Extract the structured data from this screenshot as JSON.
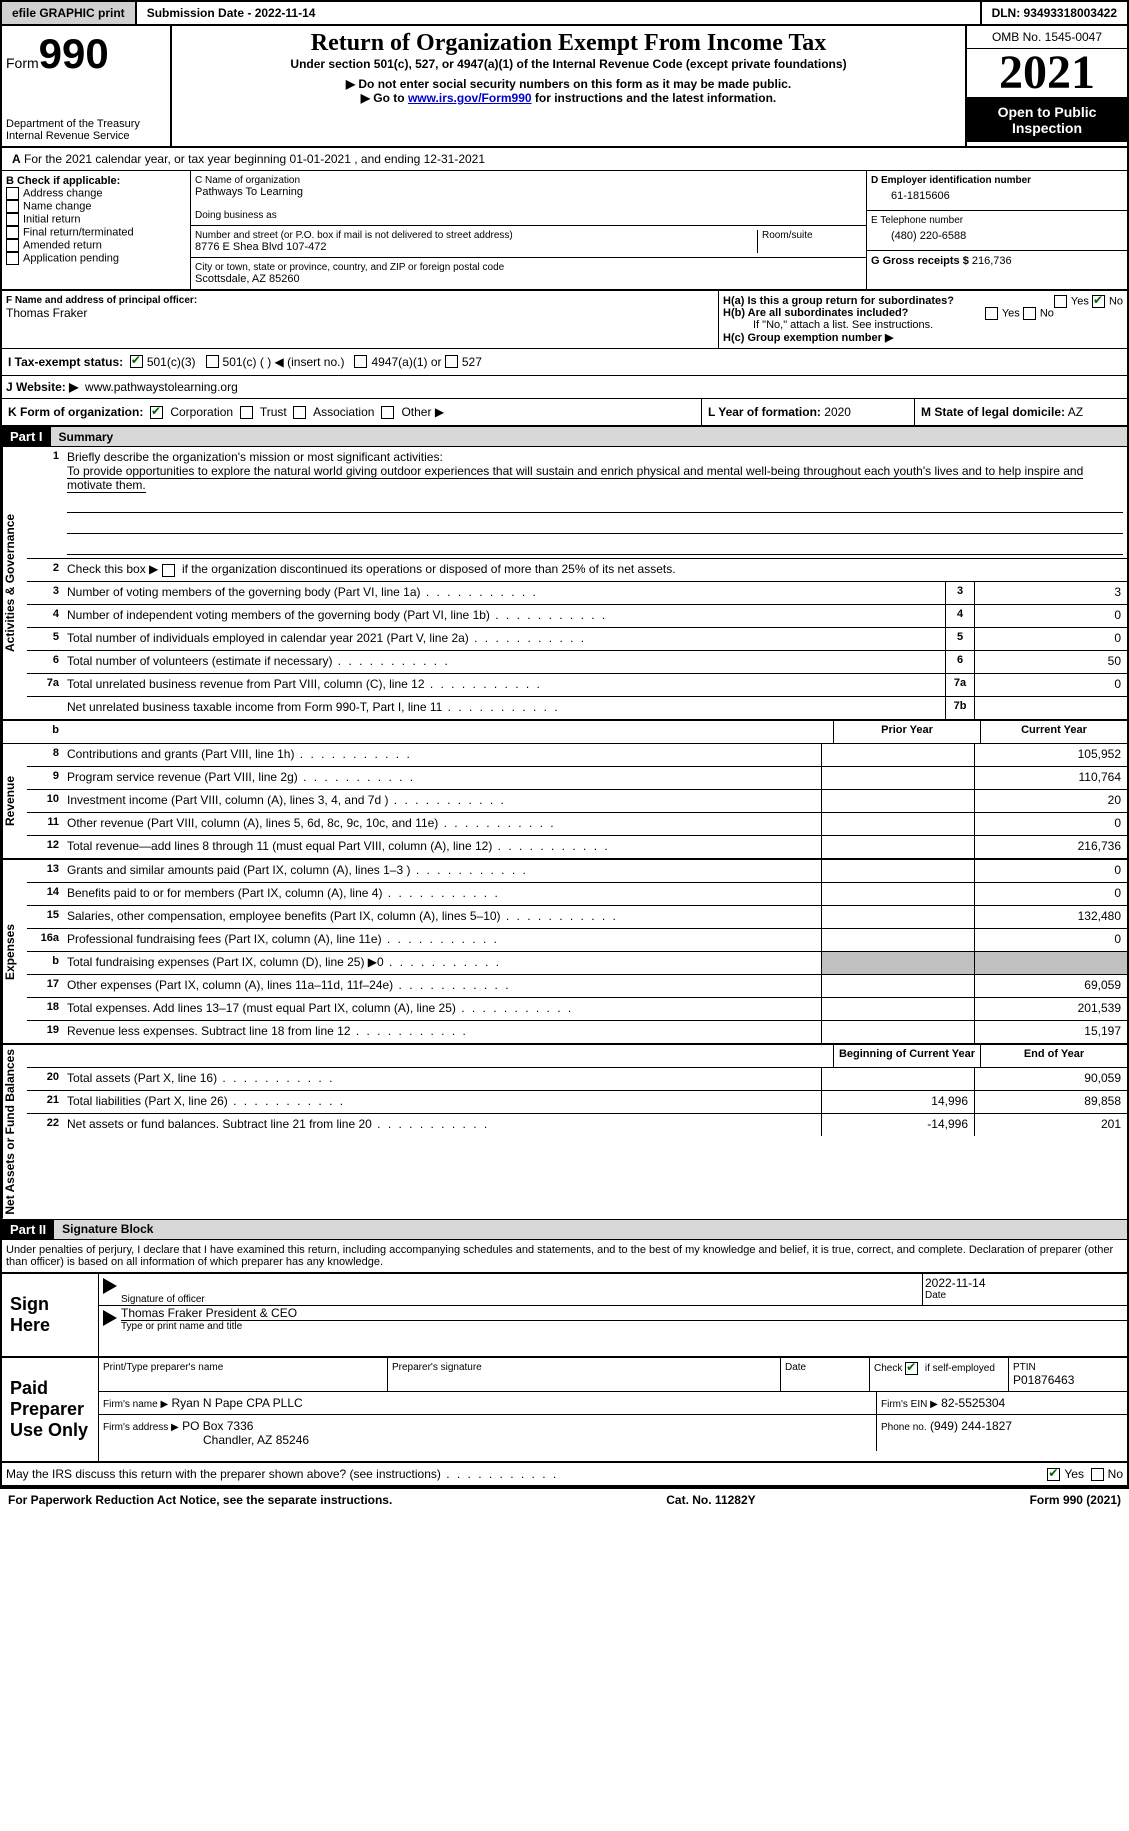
{
  "topbar": {
    "efile": "efile GRAPHIC print",
    "submission": "Submission Date - 2022-11-14",
    "dln": "DLN: 93493318003422"
  },
  "header": {
    "form_label": "Form",
    "form_number": "990",
    "dept": "Department of the Treasury",
    "irs": "Internal Revenue Service",
    "title": "Return of Organization Exempt From Income Tax",
    "subtitle": "Under section 501(c), 527, or 4947(a)(1) of the Internal Revenue Code (except private foundations)",
    "instr1": "▶ Do not enter social security numbers on this form as it may be made public.",
    "instr2_pre": "▶ Go to ",
    "instr2_link": "www.irs.gov/Form990",
    "instr2_post": " for instructions and the latest information.",
    "omb": "OMB No. 1545-0047",
    "year": "2021",
    "inspection": "Open to Public Inspection"
  },
  "sectionA": "For the 2021 calendar year, or tax year beginning 01-01-2021   , and ending 12-31-2021",
  "boxB": {
    "label": "B Check if applicable:",
    "items": [
      "Address change",
      "Name change",
      "Initial return",
      "Final return/terminated",
      "Amended return",
      "Application pending"
    ]
  },
  "boxC": {
    "name_label": "C Name of organization",
    "name": "Pathways To Learning",
    "dba_label": "Doing business as",
    "addr_label": "Number and street (or P.O. box if mail is not delivered to street address)",
    "room_label": "Room/suite",
    "addr": "8776 E Shea Blvd 107-472",
    "city_label": "City or town, state or province, country, and ZIP or foreign postal code",
    "city": "Scottsdale, AZ  85260"
  },
  "boxD": {
    "ein_label": "D Employer identification number",
    "ein": "61-1815606",
    "phone_label": "E Telephone number",
    "phone": "(480) 220-6588",
    "gross_label": "G Gross receipts $",
    "gross": "216,736"
  },
  "boxF": {
    "label": "F  Name and address of principal officer:",
    "name": "Thomas Fraker"
  },
  "boxH": {
    "ha": "H(a)  Is this a group return for subordinates?",
    "hb": "H(b)  Are all subordinates included?",
    "hb_note": "If \"No,\" attach a list. See instructions.",
    "hc": "H(c)  Group exemption number ▶",
    "yes": "Yes",
    "no": "No"
  },
  "boxI": {
    "label": "I    Tax-exempt status:",
    "opts": [
      "501(c)(3)",
      "501(c) (  ) ◀ (insert no.)",
      "4947(a)(1) or",
      "527"
    ]
  },
  "boxJ": {
    "label": "J   Website: ▶",
    "val": "www.pathwaystolearning.org"
  },
  "boxK": {
    "label": "K Form of organization:",
    "opts": [
      "Corporation",
      "Trust",
      "Association",
      "Other ▶"
    ]
  },
  "boxL": {
    "label": "L Year of formation:",
    "val": "2020"
  },
  "boxM": {
    "label": "M State of legal domicile:",
    "val": "AZ"
  },
  "part1": {
    "label": "Part I",
    "title": "Summary"
  },
  "summary": {
    "q1": "Briefly describe the organization's mission or most significant activities:",
    "mission": "To provide opportunities to explore the natural world giving outdoor experiences that will sustain and enrich physical and mental well-being throughout each youth's lives and to help inspire and motivate them.",
    "q2": "Check this box ▶       if the organization discontinued its operations or disposed of more than 25% of its net assets.",
    "rows_gov": [
      {
        "n": "3",
        "d": "Number of voting members of the governing body (Part VI, line 1a)",
        "box": "3",
        "v": "3"
      },
      {
        "n": "4",
        "d": "Number of independent voting members of the governing body (Part VI, line 1b)",
        "box": "4",
        "v": "0"
      },
      {
        "n": "5",
        "d": "Total number of individuals employed in calendar year 2021 (Part V, line 2a)",
        "box": "5",
        "v": "0"
      },
      {
        "n": "6",
        "d": "Total number of volunteers (estimate if necessary)",
        "box": "6",
        "v": "50"
      },
      {
        "n": "7a",
        "d": "Total unrelated business revenue from Part VIII, column (C), line 12",
        "box": "7a",
        "v": "0"
      },
      {
        "n": "",
        "d": "Net unrelated business taxable income from Form 990-T, Part I, line 11",
        "box": "7b",
        "v": ""
      }
    ],
    "hdr_prior": "Prior Year",
    "hdr_current": "Current Year",
    "rows_rev": [
      {
        "n": "8",
        "d": "Contributions and grants (Part VIII, line 1h)",
        "p": "",
        "c": "105,952"
      },
      {
        "n": "9",
        "d": "Program service revenue (Part VIII, line 2g)",
        "p": "",
        "c": "110,764"
      },
      {
        "n": "10",
        "d": "Investment income (Part VIII, column (A), lines 3, 4, and 7d )",
        "p": "",
        "c": "20"
      },
      {
        "n": "11",
        "d": "Other revenue (Part VIII, column (A), lines 5, 6d, 8c, 9c, 10c, and 11e)",
        "p": "",
        "c": "0"
      },
      {
        "n": "12",
        "d": "Total revenue—add lines 8 through 11 (must equal Part VIII, column (A), line 12)",
        "p": "",
        "c": "216,736"
      }
    ],
    "rows_exp": [
      {
        "n": "13",
        "d": "Grants and similar amounts paid (Part IX, column (A), lines 1–3 )",
        "p": "",
        "c": "0"
      },
      {
        "n": "14",
        "d": "Benefits paid to or for members (Part IX, column (A), line 4)",
        "p": "",
        "c": "0"
      },
      {
        "n": "15",
        "d": "Salaries, other compensation, employee benefits (Part IX, column (A), lines 5–10)",
        "p": "",
        "c": "132,480"
      },
      {
        "n": "16a",
        "d": "Professional fundraising fees (Part IX, column (A), line 11e)",
        "p": "",
        "c": "0"
      },
      {
        "n": "b",
        "d": "Total fundraising expenses (Part IX, column (D), line 25) ▶0",
        "p": "shade",
        "c": "shade"
      },
      {
        "n": "17",
        "d": "Other expenses (Part IX, column (A), lines 11a–11d, 11f–24e)",
        "p": "",
        "c": "69,059"
      },
      {
        "n": "18",
        "d": "Total expenses. Add lines 13–17 (must equal Part IX, column (A), line 25)",
        "p": "",
        "c": "201,539"
      },
      {
        "n": "19",
        "d": "Revenue less expenses. Subtract line 18 from line 12",
        "p": "",
        "c": "15,197"
      }
    ],
    "hdr_begin": "Beginning of Current Year",
    "hdr_end": "End of Year",
    "rows_net": [
      {
        "n": "20",
        "d": "Total assets (Part X, line 16)",
        "p": "",
        "c": "90,059"
      },
      {
        "n": "21",
        "d": "Total liabilities (Part X, line 26)",
        "p": "14,996",
        "c": "89,858"
      },
      {
        "n": "22",
        "d": "Net assets or fund balances. Subtract line 21 from line 20",
        "p": "-14,996",
        "c": "201"
      }
    ]
  },
  "part2": {
    "label": "Part II",
    "title": "Signature Block"
  },
  "penalties": "Under penalties of perjury, I declare that I have examined this return, including accompanying schedules and statements, and to the best of my knowledge and belief, it is true, correct, and complete. Declaration of preparer (other than officer) is based on all information of which preparer has any knowledge.",
  "sign": {
    "here": "Sign Here",
    "sig_label": "Signature of officer",
    "date_label": "Date",
    "date": "2022-11-14",
    "name": "Thomas Fraker  President & CEO",
    "name_label": "Type or print name and title"
  },
  "preparer": {
    "label": "Paid Preparer Use Only",
    "print_label": "Print/Type preparer's name",
    "sig_label": "Preparer's signature",
    "date_label": "Date",
    "check_label": "Check        if self-employed",
    "ptin_label": "PTIN",
    "ptin": "P01876463",
    "firm_name_label": "Firm's name    ▶",
    "firm_name": "Ryan N Pape CPA PLLC",
    "firm_ein_label": "Firm's EIN ▶",
    "firm_ein": "82-5525304",
    "firm_addr_label": "Firm's address ▶",
    "firm_addr1": "PO Box 7336",
    "firm_addr2": "Chandler, AZ  85246",
    "phone_label": "Phone no.",
    "phone": "(949) 244-1827"
  },
  "discuss": "May the IRS discuss this return with the preparer shown above? (see instructions)",
  "footer": {
    "left": "For Paperwork Reduction Act Notice, see the separate instructions.",
    "mid": "Cat. No. 11282Y",
    "right": "Form 990 (2021)"
  },
  "vtabs": {
    "gov": "Activities & Governance",
    "rev": "Revenue",
    "exp": "Expenses",
    "net": "Net Assets or Fund Balances"
  }
}
